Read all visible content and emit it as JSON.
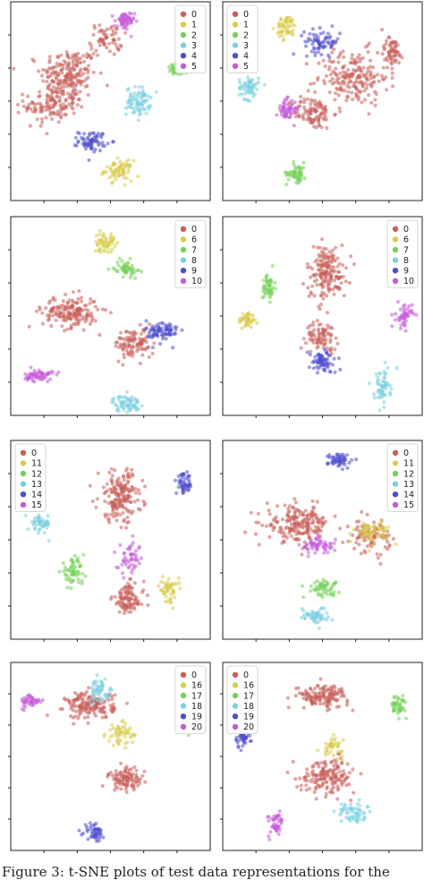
{
  "chart_data": [
    {
      "type": "scatter",
      "title": "",
      "xlabel": "",
      "ylabel": "",
      "x_tick_labels": [],
      "y_tick_labels": [],
      "grid": false,
      "legend_position": "top-right",
      "series": [
        {
          "name": "0",
          "color": "#c95f5a",
          "clusters": [
            {
              "x": 0.29,
              "y": 0.63,
              "sx": 0.14,
              "sy": 0.14,
              "n": 200
            },
            {
              "x": 0.2,
              "y": 0.48,
              "sx": 0.13,
              "sy": 0.09,
              "n": 120
            },
            {
              "x": 0.48,
              "y": 0.81,
              "sx": 0.08,
              "sy": 0.08,
              "n": 60
            }
          ]
        },
        {
          "name": "1",
          "color": "#d9cc4a",
          "clusters": [
            {
              "x": 0.54,
              "y": 0.15,
              "sx": 0.07,
              "sy": 0.05,
              "n": 70
            }
          ]
        },
        {
          "name": "2",
          "color": "#74d257",
          "clusters": [
            {
              "x": 0.85,
              "y": 0.66,
              "sx": 0.07,
              "sy": 0.03,
              "n": 60
            }
          ]
        },
        {
          "name": "3",
          "color": "#7bcfe0",
          "clusters": [
            {
              "x": 0.64,
              "y": 0.5,
              "sx": 0.06,
              "sy": 0.07,
              "n": 80
            }
          ]
        },
        {
          "name": "4",
          "color": "#4f4ed0",
          "clusters": [
            {
              "x": 0.41,
              "y": 0.3,
              "sx": 0.07,
              "sy": 0.05,
              "n": 70
            }
          ]
        },
        {
          "name": "5",
          "color": "#c45bd8",
          "clusters": [
            {
              "x": 0.57,
              "y": 0.9,
              "sx": 0.05,
              "sy": 0.05,
              "n": 60
            }
          ]
        }
      ]
    },
    {
      "type": "scatter",
      "title": "",
      "xlabel": "",
      "ylabel": "",
      "x_tick_labels": [],
      "y_tick_labels": [],
      "grid": false,
      "legend_position": "top-left",
      "series": [
        {
          "name": "0",
          "color": "#c95f5a",
          "clusters": [
            {
              "x": 0.65,
              "y": 0.62,
              "sx": 0.18,
              "sy": 0.14,
              "n": 200
            },
            {
              "x": 0.45,
              "y": 0.44,
              "sx": 0.1,
              "sy": 0.08,
              "n": 100
            },
            {
              "x": 0.85,
              "y": 0.75,
              "sx": 0.06,
              "sy": 0.07,
              "n": 60
            }
          ]
        },
        {
          "name": "1",
          "color": "#d9cc4a",
          "clusters": [
            {
              "x": 0.32,
              "y": 0.87,
              "sx": 0.05,
              "sy": 0.06,
              "n": 55
            }
          ]
        },
        {
          "name": "2",
          "color": "#74d257",
          "clusters": [
            {
              "x": 0.37,
              "y": 0.14,
              "sx": 0.05,
              "sy": 0.05,
              "n": 55
            }
          ]
        },
        {
          "name": "3",
          "color": "#7bcfe0",
          "clusters": [
            {
              "x": 0.13,
              "y": 0.57,
              "sx": 0.05,
              "sy": 0.06,
              "n": 60
            }
          ]
        },
        {
          "name": "4",
          "color": "#4f4ed0",
          "clusters": [
            {
              "x": 0.5,
              "y": 0.8,
              "sx": 0.09,
              "sy": 0.06,
              "n": 70
            }
          ]
        },
        {
          "name": "5",
          "color": "#c45bd8",
          "clusters": [
            {
              "x": 0.32,
              "y": 0.46,
              "sx": 0.05,
              "sy": 0.05,
              "n": 55
            }
          ]
        }
      ]
    },
    {
      "type": "scatter",
      "title": "",
      "xlabel": "",
      "ylabel": "",
      "x_tick_labels": [],
      "y_tick_labels": [],
      "grid": false,
      "legend_position": "top-right",
      "series": [
        {
          "name": "0",
          "color": "#c95f5a",
          "clusters": [
            {
              "x": 0.3,
              "y": 0.52,
              "sx": 0.14,
              "sy": 0.08,
              "n": 170
            },
            {
              "x": 0.62,
              "y": 0.36,
              "sx": 0.1,
              "sy": 0.08,
              "n": 100
            }
          ]
        },
        {
          "name": "6",
          "color": "#d9cc4a",
          "clusters": [
            {
              "x": 0.47,
              "y": 0.87,
              "sx": 0.05,
              "sy": 0.05,
              "n": 55
            }
          ]
        },
        {
          "name": "7",
          "color": "#74d257",
          "clusters": [
            {
              "x": 0.58,
              "y": 0.74,
              "sx": 0.06,
              "sy": 0.04,
              "n": 55
            }
          ]
        },
        {
          "name": "8",
          "color": "#7bcfe0",
          "clusters": [
            {
              "x": 0.58,
              "y": 0.06,
              "sx": 0.07,
              "sy": 0.04,
              "n": 65
            }
          ]
        },
        {
          "name": "9",
          "color": "#4f4ed0",
          "clusters": [
            {
              "x": 0.76,
              "y": 0.42,
              "sx": 0.08,
              "sy": 0.06,
              "n": 80
            }
          ]
        },
        {
          "name": "10",
          "color": "#c45bd8",
          "clusters": [
            {
              "x": 0.14,
              "y": 0.2,
              "sx": 0.07,
              "sy": 0.03,
              "n": 60
            }
          ]
        }
      ]
    },
    {
      "type": "scatter",
      "title": "",
      "xlabel": "",
      "ylabel": "",
      "x_tick_labels": [],
      "y_tick_labels": [],
      "grid": false,
      "legend_position": "top-right",
      "series": [
        {
          "name": "0",
          "color": "#c95f5a",
          "clusters": [
            {
              "x": 0.52,
              "y": 0.72,
              "sx": 0.1,
              "sy": 0.14,
              "n": 170
            },
            {
              "x": 0.5,
              "y": 0.4,
              "sx": 0.08,
              "sy": 0.07,
              "n": 80
            }
          ]
        },
        {
          "name": "6",
          "color": "#d9cc4a",
          "clusters": [
            {
              "x": 0.12,
              "y": 0.48,
              "sx": 0.04,
              "sy": 0.04,
              "n": 45
            }
          ]
        },
        {
          "name": "7",
          "color": "#74d257",
          "clusters": [
            {
              "x": 0.23,
              "y": 0.65,
              "sx": 0.03,
              "sy": 0.07,
              "n": 50
            }
          ]
        },
        {
          "name": "8",
          "color": "#7bcfe0",
          "clusters": [
            {
              "x": 0.8,
              "y": 0.14,
              "sx": 0.04,
              "sy": 0.09,
              "n": 60
            }
          ]
        },
        {
          "name": "9",
          "color": "#4f4ed0",
          "clusters": [
            {
              "x": 0.5,
              "y": 0.27,
              "sx": 0.07,
              "sy": 0.06,
              "n": 70
            }
          ]
        },
        {
          "name": "10",
          "color": "#c45bd8",
          "clusters": [
            {
              "x": 0.91,
              "y": 0.5,
              "sx": 0.04,
              "sy": 0.06,
              "n": 50
            }
          ]
        }
      ]
    },
    {
      "type": "scatter",
      "title": "",
      "xlabel": "",
      "ylabel": "",
      "x_tick_labels": [],
      "y_tick_labels": [],
      "grid": false,
      "legend_position": "top-left",
      "series": [
        {
          "name": "0",
          "color": "#c95f5a",
          "clusters": [
            {
              "x": 0.55,
              "y": 0.72,
              "sx": 0.11,
              "sy": 0.13,
              "n": 180
            },
            {
              "x": 0.59,
              "y": 0.2,
              "sx": 0.08,
              "sy": 0.08,
              "n": 100
            }
          ]
        },
        {
          "name": "11",
          "color": "#d9cc4a",
          "clusters": [
            {
              "x": 0.79,
              "y": 0.25,
              "sx": 0.05,
              "sy": 0.06,
              "n": 50
            }
          ]
        },
        {
          "name": "12",
          "color": "#74d257",
          "clusters": [
            {
              "x": 0.31,
              "y": 0.34,
              "sx": 0.06,
              "sy": 0.06,
              "n": 60
            }
          ]
        },
        {
          "name": "13",
          "color": "#7bcfe0",
          "clusters": [
            {
              "x": 0.15,
              "y": 0.58,
              "sx": 0.05,
              "sy": 0.05,
              "n": 50
            }
          ]
        },
        {
          "name": "14",
          "color": "#4f4ed0",
          "clusters": [
            {
              "x": 0.87,
              "y": 0.78,
              "sx": 0.04,
              "sy": 0.05,
              "n": 50
            }
          ]
        },
        {
          "name": "15",
          "color": "#c45bd8",
          "clusters": [
            {
              "x": 0.6,
              "y": 0.4,
              "sx": 0.06,
              "sy": 0.08,
              "n": 50
            }
          ]
        }
      ]
    },
    {
      "type": "scatter",
      "title": "",
      "xlabel": "",
      "ylabel": "",
      "x_tick_labels": [],
      "y_tick_labels": [],
      "grid": false,
      "legend_position": "top-right",
      "series": [
        {
          "name": "0",
          "color": "#c95f5a",
          "clusters": [
            {
              "x": 0.38,
              "y": 0.58,
              "sx": 0.16,
              "sy": 0.09,
              "n": 200
            },
            {
              "x": 0.74,
              "y": 0.52,
              "sx": 0.1,
              "sy": 0.08,
              "n": 90
            }
          ]
        },
        {
          "name": "11",
          "color": "#d9cc4a",
          "clusters": [
            {
              "x": 0.75,
              "y": 0.54,
              "sx": 0.09,
              "sy": 0.06,
              "n": 60
            }
          ]
        },
        {
          "name": "12",
          "color": "#74d257",
          "clusters": [
            {
              "x": 0.5,
              "y": 0.26,
              "sx": 0.08,
              "sy": 0.04,
              "n": 55
            }
          ]
        },
        {
          "name": "13",
          "color": "#7bcfe0",
          "clusters": [
            {
              "x": 0.46,
              "y": 0.12,
              "sx": 0.07,
              "sy": 0.04,
              "n": 55
            }
          ]
        },
        {
          "name": "14",
          "color": "#4f4ed0",
          "clusters": [
            {
              "x": 0.59,
              "y": 0.9,
              "sx": 0.06,
              "sy": 0.04,
              "n": 55
            }
          ]
        },
        {
          "name": "15",
          "color": "#c45bd8",
          "clusters": [
            {
              "x": 0.48,
              "y": 0.47,
              "sx": 0.08,
              "sy": 0.04,
              "n": 60
            }
          ]
        }
      ]
    },
    {
      "type": "scatter",
      "title": "",
      "xlabel": "",
      "ylabel": "",
      "x_tick_labels": [],
      "y_tick_labels": [],
      "grid": false,
      "legend_position": "top-right",
      "series": [
        {
          "name": "0",
          "color": "#c95f5a",
          "clusters": [
            {
              "x": 0.4,
              "y": 0.77,
              "sx": 0.12,
              "sy": 0.07,
              "n": 160
            },
            {
              "x": 0.58,
              "y": 0.38,
              "sx": 0.09,
              "sy": 0.06,
              "n": 100
            }
          ]
        },
        {
          "name": "16",
          "color": "#d9cc4a",
          "clusters": [
            {
              "x": 0.55,
              "y": 0.62,
              "sx": 0.07,
              "sy": 0.06,
              "n": 55
            }
          ]
        },
        {
          "name": "17",
          "color": "#74d257",
          "clusters": [
            {
              "x": 0.88,
              "y": 0.67,
              "sx": 0.04,
              "sy": 0.04,
              "n": 45
            }
          ]
        },
        {
          "name": "18",
          "color": "#7bcfe0",
          "clusters": [
            {
              "x": 0.45,
              "y": 0.85,
              "sx": 0.06,
              "sy": 0.06,
              "n": 55
            }
          ]
        },
        {
          "name": "19",
          "color": "#4f4ed0",
          "clusters": [
            {
              "x": 0.42,
              "y": 0.1,
              "sx": 0.05,
              "sy": 0.05,
              "n": 50
            }
          ]
        },
        {
          "name": "20",
          "color": "#c45bd8",
          "clusters": [
            {
              "x": 0.1,
              "y": 0.79,
              "sx": 0.05,
              "sy": 0.04,
              "n": 45
            }
          ]
        }
      ]
    },
    {
      "type": "scatter",
      "title": "",
      "xlabel": "",
      "ylabel": "",
      "x_tick_labels": [],
      "y_tick_labels": [],
      "grid": false,
      "legend_position": "top-left",
      "series": [
        {
          "name": "0",
          "color": "#c95f5a",
          "clusters": [
            {
              "x": 0.5,
              "y": 0.82,
              "sx": 0.13,
              "sy": 0.06,
              "n": 140
            },
            {
              "x": 0.53,
              "y": 0.4,
              "sx": 0.14,
              "sy": 0.09,
              "n": 160
            }
          ]
        },
        {
          "name": "16",
          "color": "#d9cc4a",
          "clusters": [
            {
              "x": 0.55,
              "y": 0.55,
              "sx": 0.05,
              "sy": 0.05,
              "n": 40
            }
          ]
        },
        {
          "name": "17",
          "color": "#74d257",
          "clusters": [
            {
              "x": 0.88,
              "y": 0.77,
              "sx": 0.04,
              "sy": 0.05,
              "n": 45
            }
          ]
        },
        {
          "name": "18",
          "color": "#7bcfe0",
          "clusters": [
            {
              "x": 0.65,
              "y": 0.2,
              "sx": 0.07,
              "sy": 0.06,
              "n": 60
            }
          ]
        },
        {
          "name": "19",
          "color": "#4f4ed0",
          "clusters": [
            {
              "x": 0.1,
              "y": 0.6,
              "sx": 0.04,
              "sy": 0.05,
              "n": 45
            }
          ]
        },
        {
          "name": "20",
          "color": "#c45bd8",
          "clusters": [
            {
              "x": 0.27,
              "y": 0.14,
              "sx": 0.04,
              "sy": 0.07,
              "n": 45
            }
          ]
        }
      ]
    }
  ],
  "caption": "Figure 3: t-SNE plots of test data representations for the"
}
